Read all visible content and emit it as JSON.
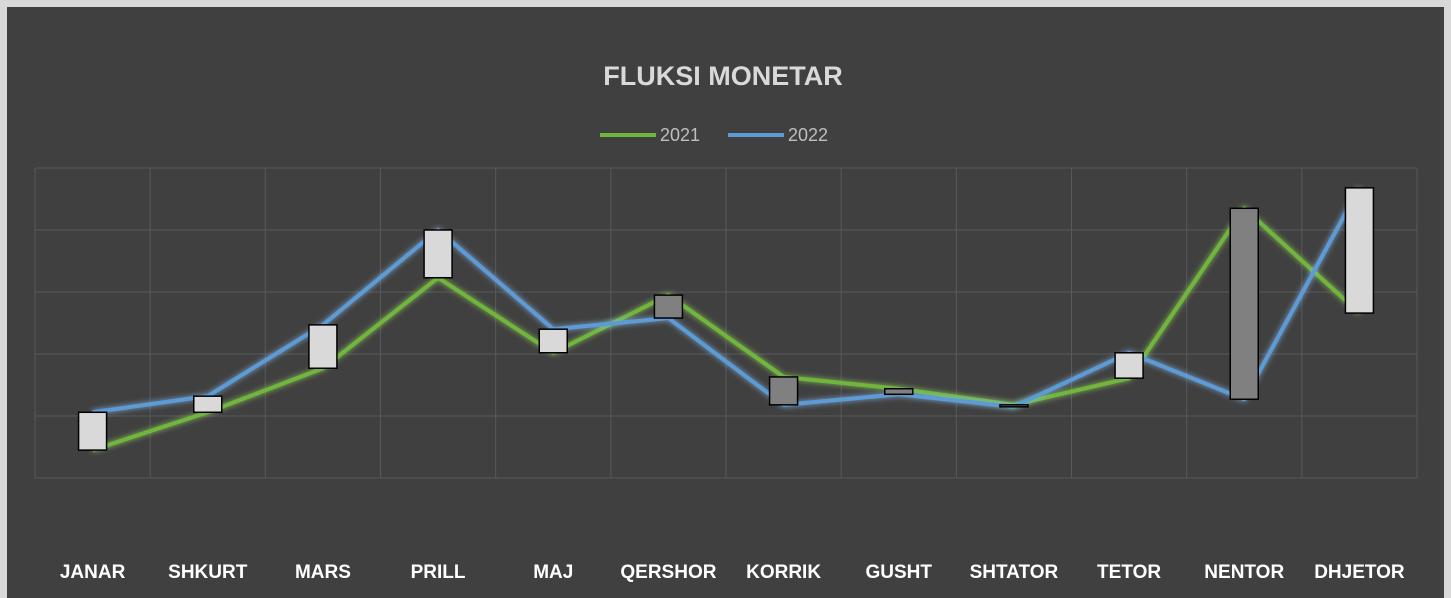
{
  "chart_data": {
    "type": "line",
    "title": "FLUKSI  MONETAR",
    "categories": [
      "JANAR",
      "SHKURT",
      "MARS",
      "PRILL",
      "MAJ",
      "QERSHOR",
      "KORRIK",
      "GUSHT",
      "SHTATOR",
      "TETOR",
      "NENTOR",
      "DHJETOR"
    ],
    "series": [
      {
        "name": "2021",
        "color": "#70b63c",
        "values": [
          1.45,
          2.06,
          2.77,
          4.23,
          3.02,
          3.95,
          2.63,
          2.44,
          2.18,
          2.61,
          5.35,
          3.66
        ]
      },
      {
        "name": "2022",
        "color": "#5b9bd5",
        "values": [
          2.06,
          2.32,
          3.47,
          5.0,
          3.4,
          3.58,
          2.18,
          2.35,
          2.15,
          3.02,
          2.27,
          5.68
        ]
      }
    ],
    "up_down_bars": true,
    "ylim": [
      0,
      6
    ],
    "yticks": [
      1,
      2,
      3,
      4,
      5,
      6
    ],
    "grid": true,
    "legend": "top"
  }
}
